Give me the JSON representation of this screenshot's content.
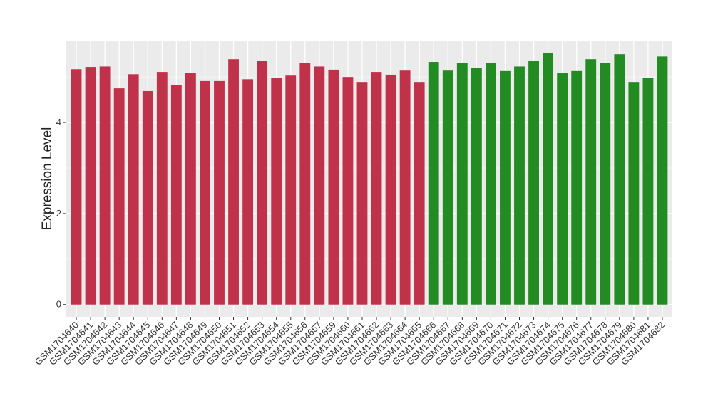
{
  "chart_data": {
    "type": "bar",
    "y_label": "Expression Level",
    "categories": [
      "GSM1704640",
      "GSM1704641",
      "GSM1704642",
      "GSM1704643",
      "GSM1704644",
      "GSM1704645",
      "GSM1704646",
      "GSM1704647",
      "GSM1704648",
      "GSM1704649",
      "GSM1704650",
      "GSM1704651",
      "GSM1704652",
      "GSM1704653",
      "GSM1704654",
      "GSM1704655",
      "GSM1704656",
      "GSM1704657",
      "GSM1704659",
      "GSM1704660",
      "GSM1704661",
      "GSM1704662",
      "GSM1704663",
      "GSM1704664",
      "GSM1704665",
      "GSM1704666",
      "GSM1704667",
      "GSM1704668",
      "GSM1704669",
      "GSM1704670",
      "GSM1704671",
      "GSM1704672",
      "GSM1704673",
      "GSM1704674",
      "GSM1704675",
      "GSM1704676",
      "GSM1704677",
      "GSM1704678",
      "GSM1704679",
      "GSM1704680",
      "GSM1704681",
      "GSM1704682"
    ],
    "values": [
      5.17,
      5.22,
      5.23,
      4.75,
      5.06,
      4.69,
      5.11,
      4.83,
      5.09,
      4.91,
      4.91,
      5.39,
      4.95,
      5.36,
      4.98,
      5.03,
      5.3,
      5.23,
      5.16,
      5.0,
      4.89,
      5.11,
      5.05,
      5.14,
      4.89,
      5.33,
      5.14,
      5.3,
      5.2,
      5.31,
      5.13,
      5.23,
      5.36,
      5.53,
      5.08,
      5.13,
      5.39,
      5.31,
      5.5,
      4.89,
      4.98,
      5.45
    ],
    "colors": [
      "#c0324a",
      "#c0324a",
      "#c0324a",
      "#c0324a",
      "#c0324a",
      "#c0324a",
      "#c0324a",
      "#c0324a",
      "#c0324a",
      "#c0324a",
      "#c0324a",
      "#c0324a",
      "#c0324a",
      "#c0324a",
      "#c0324a",
      "#c0324a",
      "#c0324a",
      "#c0324a",
      "#c0324a",
      "#c0324a",
      "#c0324a",
      "#c0324a",
      "#c0324a",
      "#c0324a",
      "#c0324a",
      "#228b22",
      "#228b22",
      "#228b22",
      "#228b22",
      "#228b22",
      "#228b22",
      "#228b22",
      "#228b22",
      "#228b22",
      "#228b22",
      "#228b22",
      "#228b22",
      "#228b22",
      "#228b22",
      "#228b22",
      "#228b22",
      "#228b22"
    ],
    "ylim": [
      -0.27,
      5.8
    ],
    "yticks": [
      0,
      2,
      4
    ],
    "grid": true
  }
}
